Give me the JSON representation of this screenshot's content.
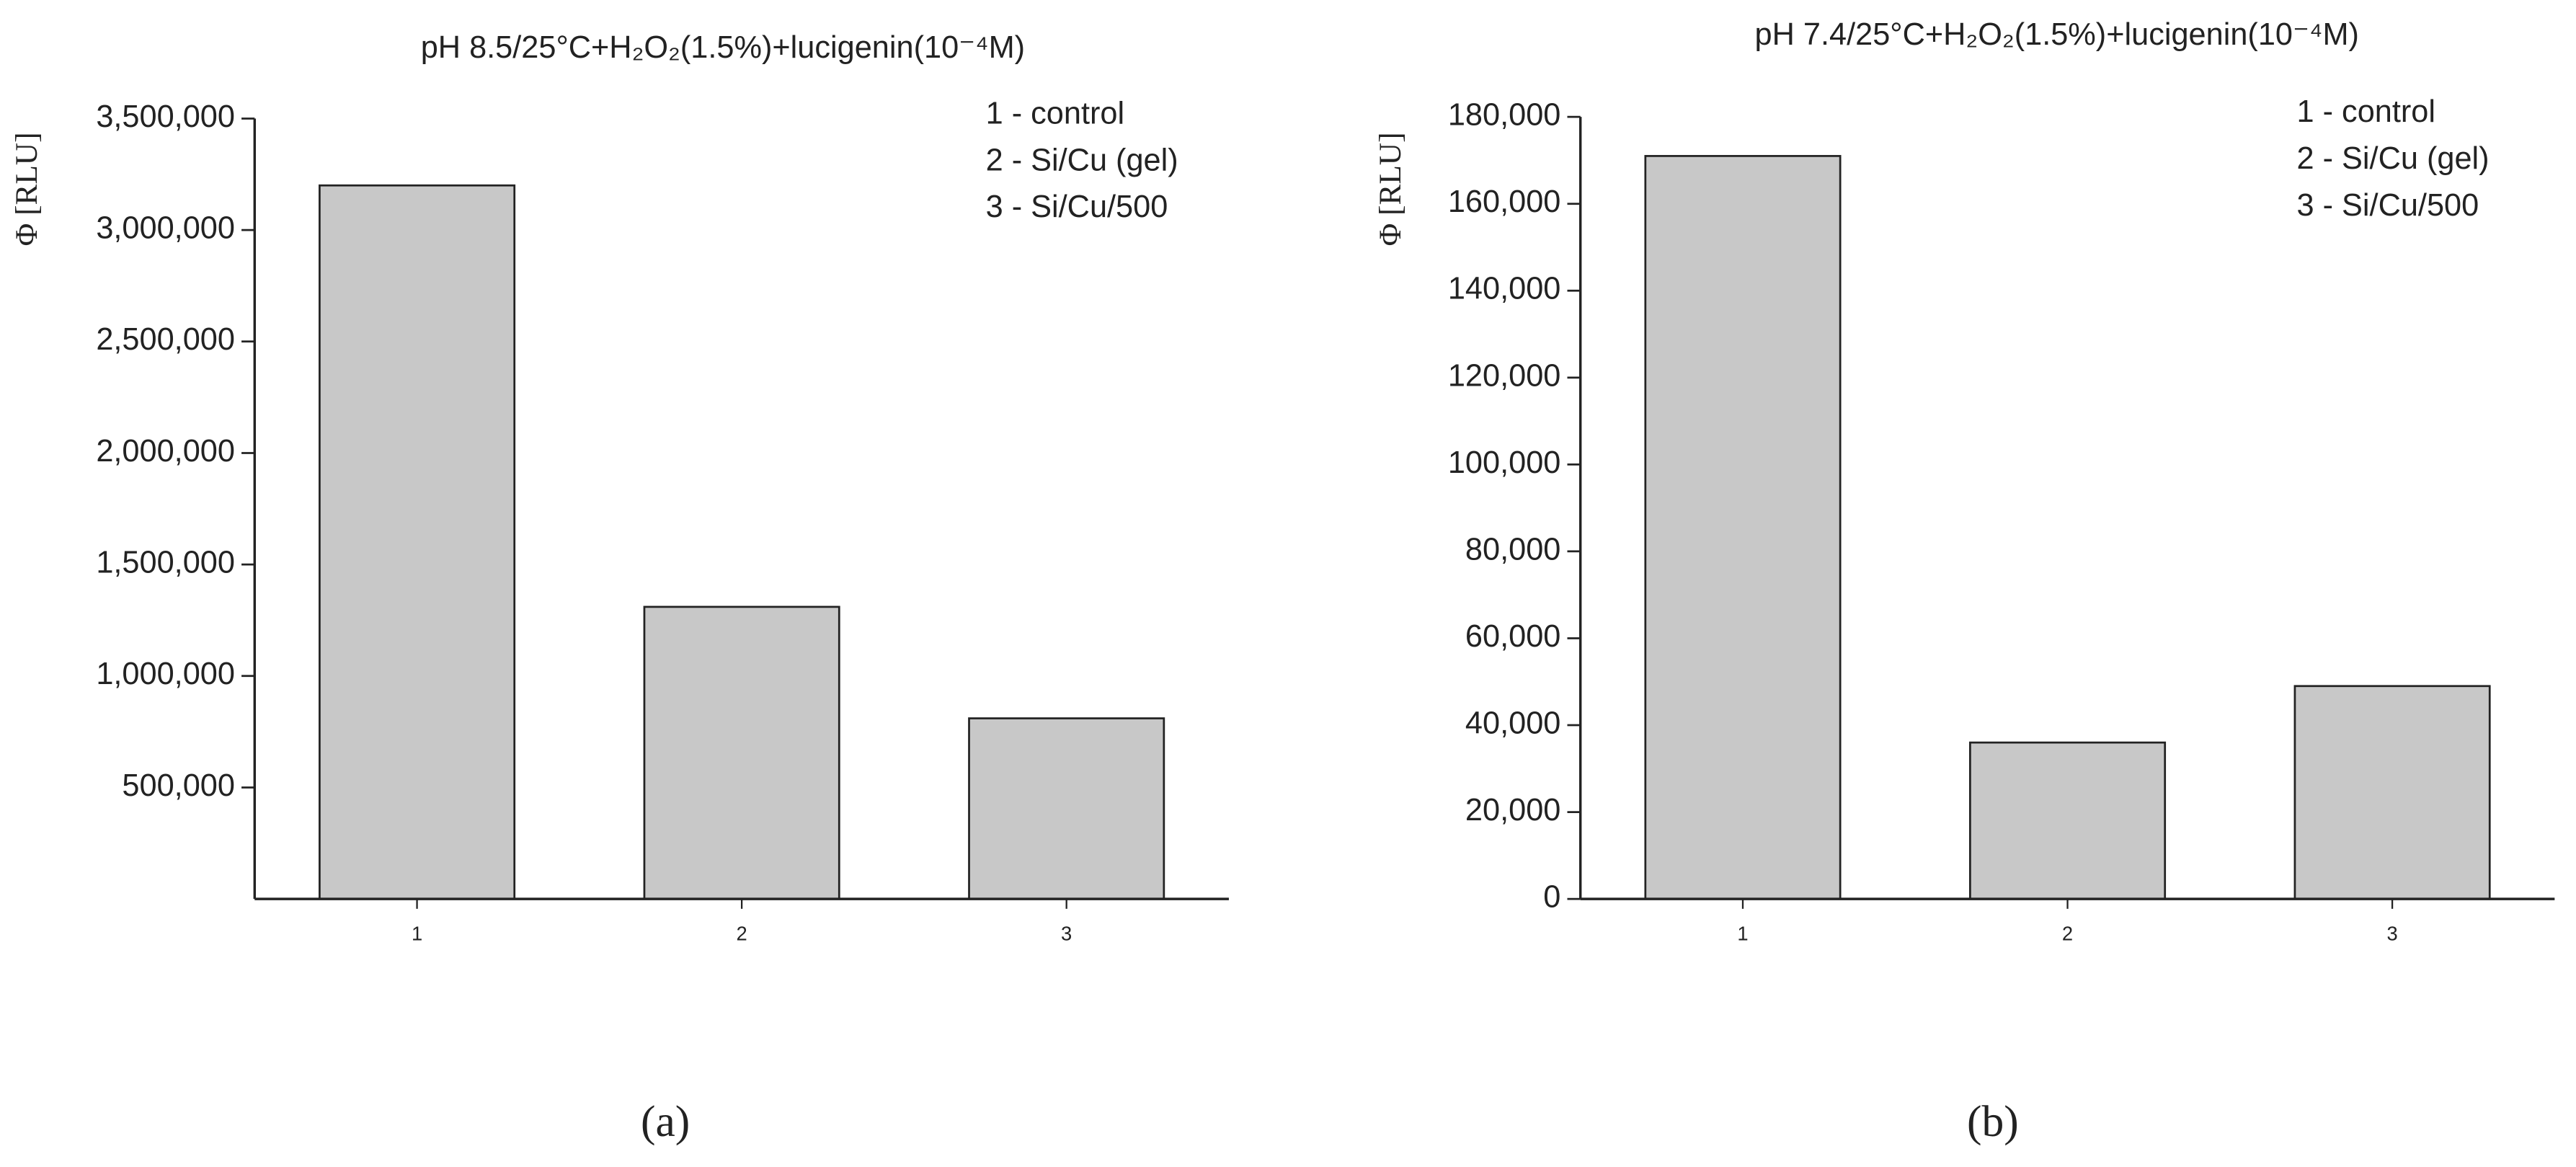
{
  "chart_data": [
    {
      "type": "bar",
      "title": "pH 8.5/25°C+H₂O₂(1.5%)+lucigenin(10⁻⁴M)",
      "y_label": "Φ [RLU]",
      "categories": [
        "1",
        "2",
        "3"
      ],
      "values": [
        3200000,
        1310000,
        810000
      ],
      "color": "#c8c8c8",
      "ylim": [
        0,
        3500000
      ],
      "yticks": [
        {
          "value": 500000,
          "label": "500,000"
        },
        {
          "value": 1000000,
          "label": "1,000,000"
        },
        {
          "value": 1500000,
          "label": "1,500,000"
        },
        {
          "value": 2000000,
          "label": "2,000,000"
        },
        {
          "value": 2500000,
          "label": "2,500,000"
        },
        {
          "value": 3000000,
          "label": "3,000,000"
        },
        {
          "value": 3500000,
          "label": "3,500,000"
        }
      ],
      "annotations": [
        "1 - control",
        "2 - Si/Cu (gel)",
        "3 - Si/Cu/500"
      ],
      "panel_label": "(a)"
    },
    {
      "type": "bar",
      "title": "pH 7.4/25°C+H₂O₂(1.5%)+lucigenin(10⁻⁴M)",
      "y_label": "Φ [RLU]",
      "categories": [
        "1",
        "2",
        "3"
      ],
      "values": [
        171000,
        36000,
        49000
      ],
      "color": "#c8c8c8",
      "ylim": [
        0,
        180000
      ],
      "yticks": [
        0,
        {
          "value": 20000,
          "label": "20,000"
        },
        {
          "value": 40000,
          "label": "40,000"
        },
        {
          "value": 60000,
          "label": "60,000"
        },
        {
          "value": 80000,
          "label": "80,000"
        },
        {
          "value": 100000,
          "label": "100,000"
        },
        {
          "value": 120000,
          "label": "120,000"
        },
        {
          "value": 140000,
          "label": "140,000"
        },
        {
          "value": 160000,
          "label": "160,000"
        },
        {
          "value": 180000,
          "label": "180,000"
        }
      ],
      "annotations": [
        "1 - control",
        "2 - Si/Cu (gel)",
        "3 - Si/Cu/500"
      ],
      "panel_label": "(b)"
    }
  ]
}
